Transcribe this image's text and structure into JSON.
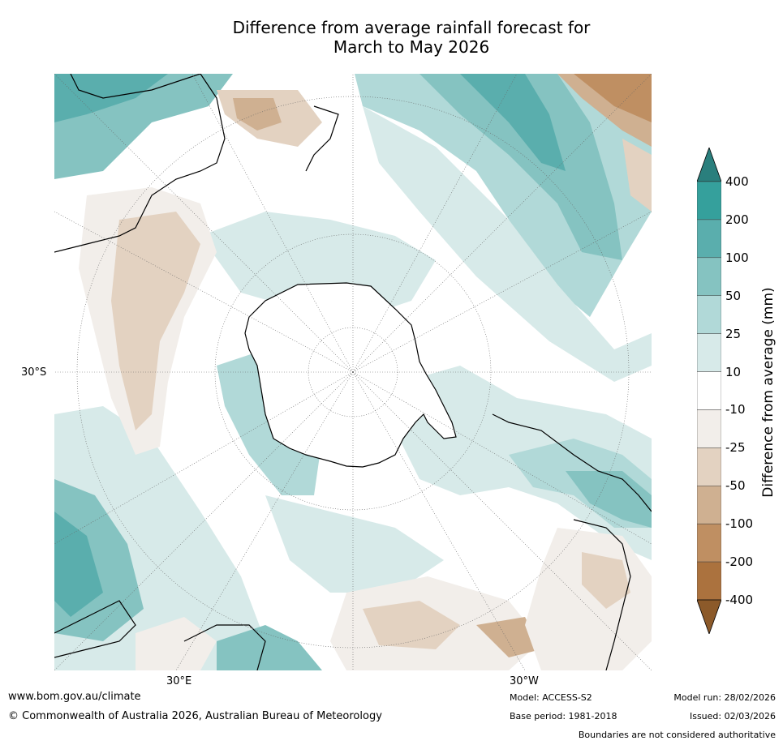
{
  "title": {
    "line1": "Difference from average rainfall forecast for",
    "line2": "March to May 2026"
  },
  "map": {
    "projection": "south-polar",
    "lat_label": "30°S",
    "lon_label_left": "30°E",
    "lon_label_right": "30°W"
  },
  "colorbar": {
    "axis_label": "Difference from average (mm)",
    "ticks": [
      "400",
      "200",
      "100",
      "50",
      "25",
      "10",
      "-10",
      "-25",
      "-50",
      "-100",
      "-200",
      "-400"
    ],
    "colors": [
      "#2a7f7d",
      "#35a09c",
      "#5aaead",
      "#85c3c1",
      "#b1d9d8",
      "#d7eae9",
      "#ffffff",
      "#f2eeea",
      "#e3d2c1",
      "#cfb091",
      "#bf8f62",
      "#ab723e",
      "#8c5a2a"
    ]
  },
  "footer": {
    "website": "www.bom.gov.au/climate",
    "copyright": "© Commonwealth of Australia 2026, Australian Bureau of Meteorology",
    "model": "Model: ACCESS-S2",
    "base_period": "Base period: 1981-2018",
    "model_run": "Model run: 28/02/2026",
    "issued": "Issued: 02/03/2026",
    "disclaimer": "Boundaries are not considered authoritative"
  }
}
